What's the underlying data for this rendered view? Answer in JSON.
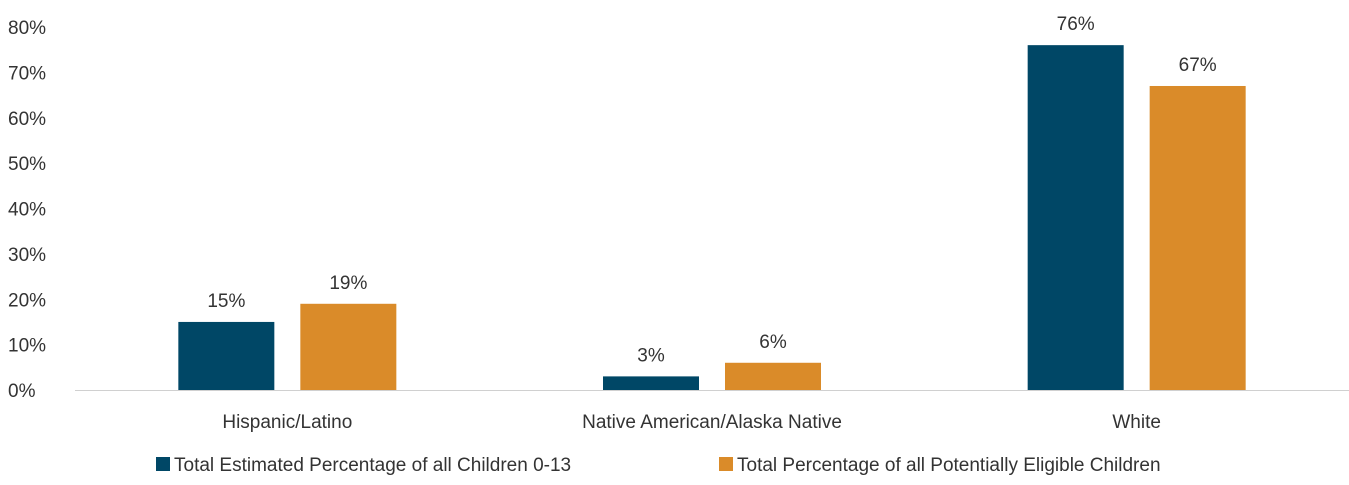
{
  "chart_data": {
    "type": "bar",
    "title": "",
    "xlabel": "",
    "ylabel": "",
    "ylim": [
      0,
      80
    ],
    "yticks": [
      0,
      10,
      20,
      30,
      40,
      50,
      60,
      70,
      80
    ],
    "ytick_format": "{v}%",
    "grid": false,
    "legend_position": "bottom",
    "categories": [
      "Hispanic/Latino",
      "Native American/Alaska Native",
      "White"
    ],
    "series": [
      {
        "name": "Total Estimated Percentage of all Children 0-13",
        "color": "#004766",
        "values": [
          15,
          3,
          76
        ],
        "labels": [
          "15%",
          "3%",
          "76%"
        ]
      },
      {
        "name": "Total Percentage of all Potentially Eligible Children",
        "color": "#DA8B29",
        "values": [
          19,
          6,
          67
        ],
        "labels": [
          "19%",
          "6%",
          "67%"
        ]
      }
    ]
  }
}
